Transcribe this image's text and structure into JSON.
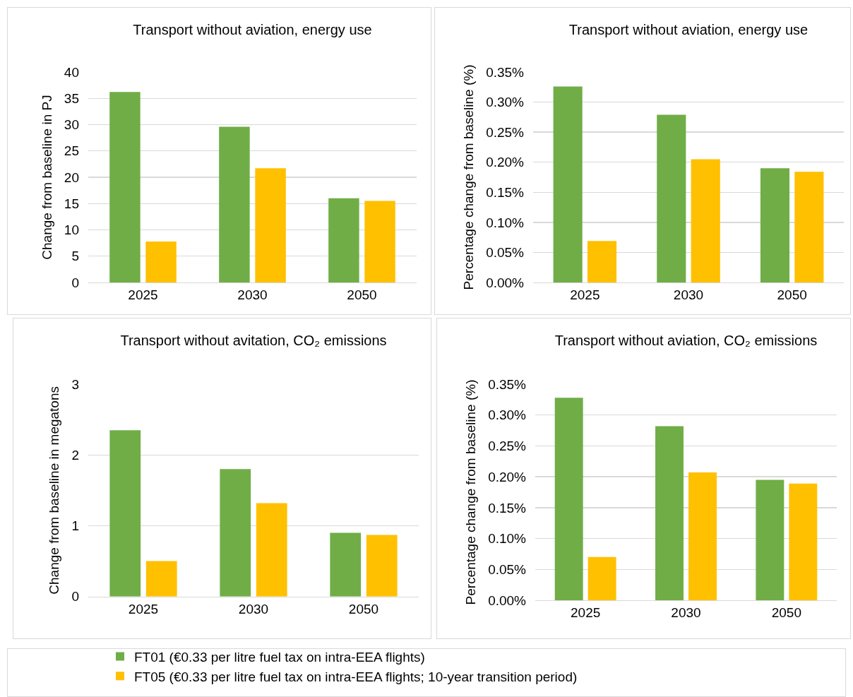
{
  "chart_data": [
    {
      "type": "bar",
      "title": "Transport without aviation, energy use",
      "ylabel": "Change from baseline in PJ",
      "categories": [
        "2025",
        "2030",
        "2050"
      ],
      "series": [
        {
          "color": "#70ad47",
          "values": [
            36.2,
            29.6,
            16.0
          ]
        },
        {
          "color": "#ffc000",
          "values": [
            7.8,
            21.7,
            15.5
          ]
        }
      ],
      "ylim": [
        0,
        40
      ],
      "yticks": [
        0,
        5,
        10,
        15,
        20,
        25,
        30,
        35,
        40
      ],
      "grid": "y"
    },
    {
      "type": "bar",
      "title": "Transport without aviation, energy use",
      "ylabel": "Percentage change from baseline (%)",
      "categories": [
        "2025",
        "2030",
        "2050"
      ],
      "series": [
        {
          "color": "#70ad47",
          "values": [
            0.326,
            0.279,
            0.19
          ]
        },
        {
          "color": "#ffc000",
          "values": [
            0.069,
            0.205,
            0.184
          ]
        }
      ],
      "ylim": [
        0,
        0.35
      ],
      "yticks": [
        {
          "value": 0,
          "label": "0.00%"
        },
        {
          "value": 0.05,
          "label": "0.05%"
        },
        {
          "value": 0.1,
          "label": "0.10%"
        },
        {
          "value": 0.15,
          "label": "0.15%"
        },
        {
          "value": 0.2,
          "label": "0.20%"
        },
        {
          "value": 0.25,
          "label": "0.25%"
        },
        {
          "value": 0.3,
          "label": "0.30%"
        },
        {
          "value": 0.35,
          "label": "0.35%"
        }
      ],
      "grid": "y"
    },
    {
      "type": "bar",
      "title": "Transport without avitation, CO₂ emissions",
      "ylabel": "Change from baseline in megatons",
      "categories": [
        "2025",
        "2030",
        "2050"
      ],
      "series": [
        {
          "name": "FT01 (€0.33 per litre fuel tax on intra-EEA flights)",
          "color": "#70ad47",
          "values": [
            2.35,
            1.8,
            0.9
          ]
        },
        {
          "name": "FT05 (€0.33 per litre fuel tax on intra-EEA flights; 10-year transition period)",
          "color": "#ffc000",
          "values": [
            0.5,
            1.32,
            0.87
          ]
        }
      ],
      "ylim": [
        0,
        3
      ],
      "yticks": [
        0,
        1,
        2,
        3
      ],
      "grid": "y",
      "legend": "bottom"
    },
    {
      "type": "bar",
      "title": "Transport without aviation, CO₂ emissions",
      "ylabel": "Percentage change from baseline (%)",
      "categories": [
        "2025",
        "2030",
        "2050"
      ],
      "series": [
        {
          "color": "#70ad47",
          "values": [
            0.328,
            0.282,
            0.195
          ]
        },
        {
          "color": "#ffc000",
          "values": [
            0.07,
            0.207,
            0.189
          ]
        }
      ],
      "ylim": [
        0,
        0.35
      ],
      "yticks": [
        {
          "value": 0,
          "label": "0.00%"
        },
        {
          "value": 0.05,
          "label": "0.05%"
        },
        {
          "value": 0.1,
          "label": "0.10%"
        },
        {
          "value": 0.15,
          "label": "0.15%"
        },
        {
          "value": 0.2,
          "label": "0.20%"
        },
        {
          "value": 0.25,
          "label": "0.25%"
        },
        {
          "value": 0.3,
          "label": "0.30%"
        },
        {
          "value": 0.35,
          "label": "0.35%"
        }
      ],
      "grid": "y"
    }
  ]
}
